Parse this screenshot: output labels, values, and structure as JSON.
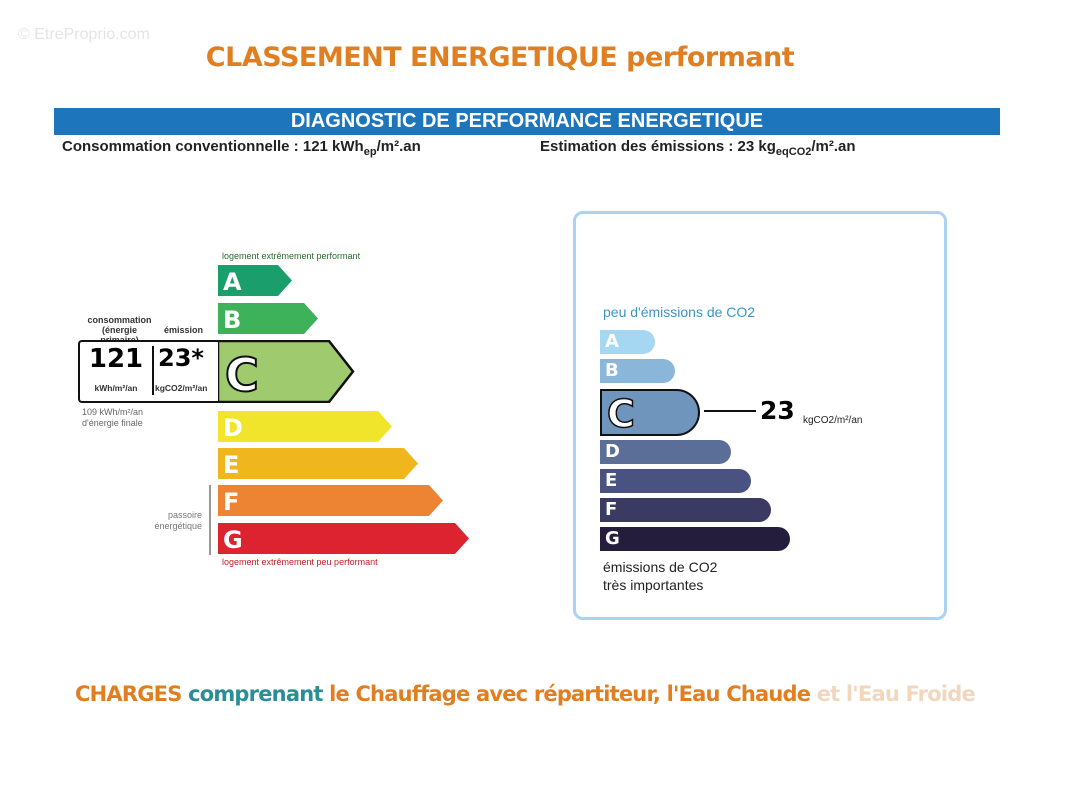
{
  "watermark": "© EtreProprio.com",
  "title": "CLASSEMENT ENERGETIQUE performant",
  "header": {
    "band": "DIAGNOSTIC DE PERFORMANCE ENERGETIQUE",
    "consumption_prefix": "Consommation conventionnelle : 121 kWh",
    "consumption_sub": "ep",
    "consumption_suffix": "/m².an",
    "emission_prefix": "Estimation des émissions : 23 kg",
    "emission_sub": "eqCO2",
    "emission_suffix": "/m².an"
  },
  "energy": {
    "top_label": "logement extrêmement performant",
    "bottom_label": "logement extrêmement peu performant",
    "consumption_label_1": "consommation",
    "consumption_label_2": "(énergie primaire)",
    "emission_label": "émission",
    "value": "121",
    "value_unit": "kWh/m²/an",
    "emission_value": "23*",
    "emission_unit": "kgCO2/m²/an",
    "final_energy_1": "109 kWh/m²/an",
    "final_energy_2": "d'énergie finale",
    "passoire_1": "passoire",
    "passoire_2": "énergétique",
    "current_class": "C",
    "classes": [
      {
        "letter": "A",
        "color": "#1a9e6c"
      },
      {
        "letter": "B",
        "color": "#3db25a"
      },
      {
        "letter": "C",
        "color": "#9fca6e"
      },
      {
        "letter": "D",
        "color": "#f1e52b"
      },
      {
        "letter": "E",
        "color": "#f0b61e"
      },
      {
        "letter": "F",
        "color": "#ec8434"
      },
      {
        "letter": "G",
        "color": "#de2330"
      }
    ]
  },
  "emissions": {
    "top_label": "peu d'émissions de CO2",
    "bottom_label_1": "émissions de CO2",
    "bottom_label_2": "très importantes",
    "value": "23",
    "unit": "kgCO2/m²/an",
    "current_class": "C",
    "classes": [
      {
        "letter": "A",
        "color": "#a5d7f2"
      },
      {
        "letter": "B",
        "color": "#8ab6da"
      },
      {
        "letter": "C",
        "color": "#6f95bd"
      },
      {
        "letter": "D",
        "color": "#5a6e98"
      },
      {
        "letter": "E",
        "color": "#4a5282"
      },
      {
        "letter": "F",
        "color": "#3a3a62"
      },
      {
        "letter": "G",
        "color": "#251d3c"
      }
    ]
  },
  "charges": {
    "part1": "CHARGES",
    "part2": "comprenant",
    "part3": "le Chauffage avec répartiteur, l'Eau Chaude",
    "part4": "et l'Eau Froide",
    "color_orange": "#e07f22",
    "color_teal": "#2b8d95"
  }
}
